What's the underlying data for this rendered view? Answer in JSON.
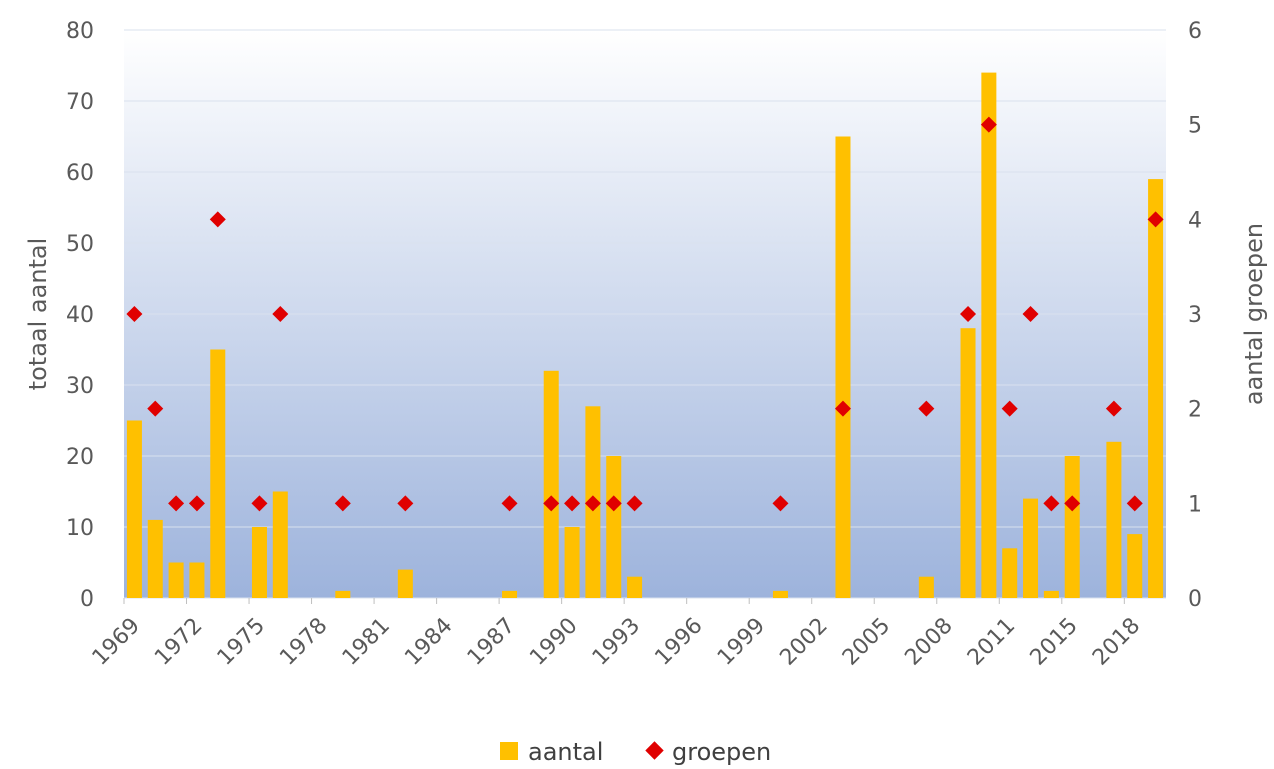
{
  "chart_data": {
    "type": "bar",
    "title": "",
    "ylabel": "totaal aantal",
    "y2label": "aantal groepen",
    "ylim": [
      0,
      80
    ],
    "y2lim": [
      0,
      6
    ],
    "yticks": [
      "0",
      "10",
      "20",
      "30",
      "40",
      "50",
      "60",
      "70",
      "80"
    ],
    "y2ticks": [
      "0",
      "1",
      "2",
      "3",
      "4",
      "5",
      "6"
    ],
    "x_tick_labels": [
      {
        "label": "1969",
        "index": 0
      },
      {
        "label": "1972",
        "index": 3
      },
      {
        "label": "1975",
        "index": 6
      },
      {
        "label": "1978",
        "index": 9
      },
      {
        "label": "1981",
        "index": 12
      },
      {
        "label": "1984",
        "index": 15
      },
      {
        "label": "1987",
        "index": 18
      },
      {
        "label": "1990",
        "index": 21
      },
      {
        "label": "1993",
        "index": 24
      },
      {
        "label": "1996",
        "index": 27
      },
      {
        "label": "1999",
        "index": 30
      },
      {
        "label": "2002",
        "index": 33
      },
      {
        "label": "2005",
        "index": 36
      },
      {
        "label": "2008",
        "index": 39
      },
      {
        "label": "2011",
        "index": 42
      },
      {
        "label": "2015",
        "index": 45
      },
      {
        "label": "2018",
        "index": 48
      }
    ],
    "legend_position": "bottom",
    "colors": {
      "aantal": "#ffc000",
      "groepen": "#e00000"
    },
    "series": [
      {
        "name": "aantal",
        "type": "bar",
        "axis": "left",
        "values": [
          25,
          11,
          5,
          5,
          35,
          0,
          10,
          15,
          0,
          0,
          1,
          0,
          0,
          4,
          0,
          0,
          0,
          0,
          1,
          0,
          32,
          10,
          27,
          20,
          3,
          0,
          0,
          0,
          0,
          0,
          0,
          1,
          0,
          0,
          65,
          0,
          0,
          0,
          3,
          0,
          38,
          74,
          7,
          14,
          1,
          20,
          0,
          22,
          9,
          59
        ]
      },
      {
        "name": "groepen",
        "type": "scatter",
        "axis": "right",
        "values": [
          3,
          2,
          1,
          1,
          4,
          0,
          1,
          3,
          0,
          0,
          1,
          0,
          0,
          1,
          0,
          0,
          0,
          0,
          1,
          0,
          1,
          1,
          1,
          1,
          1,
          0,
          0,
          0,
          0,
          0,
          0,
          1,
          0,
          0,
          2,
          0,
          0,
          0,
          2,
          0,
          3,
          5,
          2,
          3,
          1,
          1,
          0,
          2,
          1,
          4
        ]
      }
    ]
  }
}
